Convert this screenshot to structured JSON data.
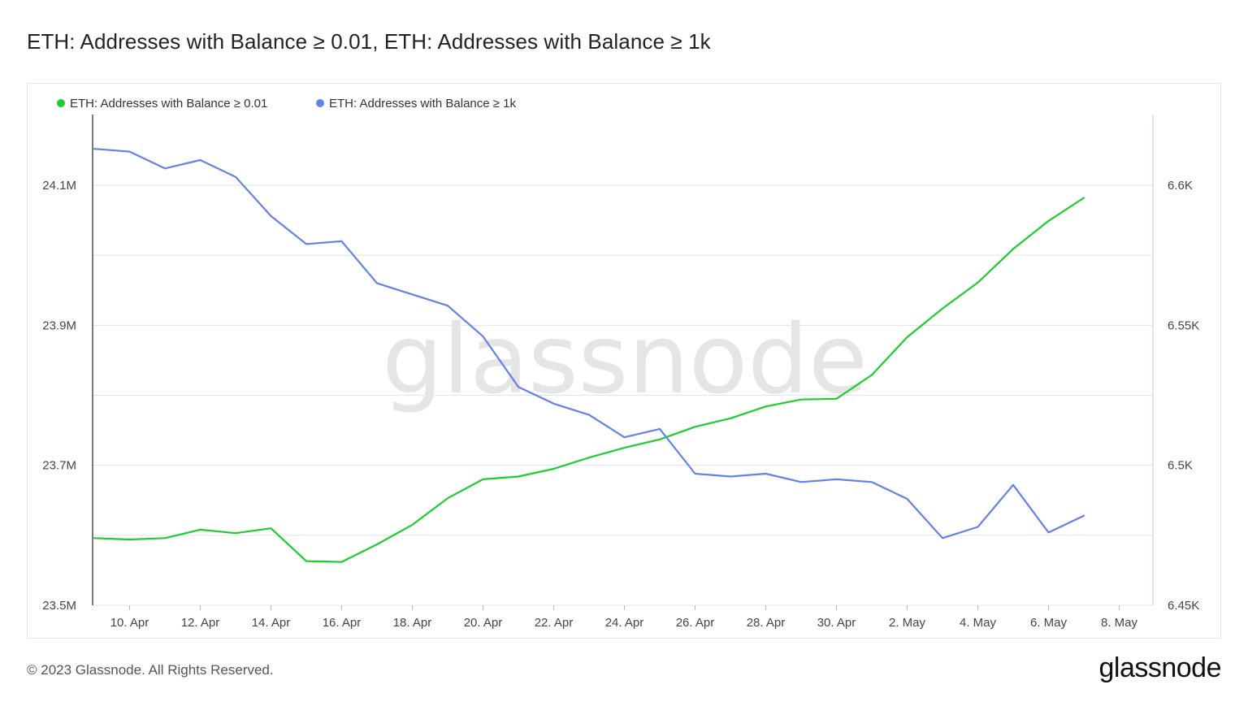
{
  "title": "ETH: Addresses with Balance ≥ 0.01, ETH: Addresses with Balance ≥ 1k",
  "watermark": "glassnode",
  "footer": {
    "copyright": "© 2023 Glassnode. All Rights Reserved.",
    "logo": "glassnode"
  },
  "chart_data": {
    "type": "line",
    "x_tick_labels": [
      "10. Apr",
      "12. Apr",
      "14. Apr",
      "16. Apr",
      "18. Apr",
      "20. Apr",
      "22. Apr",
      "24. Apr",
      "26. Apr",
      "28. Apr",
      "30. Apr",
      "2. May",
      "4. May",
      "6. May",
      "8. May"
    ],
    "x": [
      "2023-04-09",
      "2023-04-10",
      "2023-04-11",
      "2023-04-12",
      "2023-04-13",
      "2023-04-14",
      "2023-04-15",
      "2023-04-16",
      "2023-04-17",
      "2023-04-18",
      "2023-04-19",
      "2023-04-20",
      "2023-04-21",
      "2023-04-22",
      "2023-04-23",
      "2023-04-24",
      "2023-04-25",
      "2023-04-26",
      "2023-04-27",
      "2023-04-28",
      "2023-04-29",
      "2023-04-30",
      "2023-05-01",
      "2023-05-02",
      "2023-05-03",
      "2023-05-04",
      "2023-05-05",
      "2023-05-06",
      "2023-05-07"
    ],
    "y_left": {
      "ticks": [
        "23.5M",
        "23.7M",
        "23.9M",
        "24.1M"
      ],
      "range": [
        23500000,
        24100000
      ]
    },
    "y_right": {
      "ticks": [
        "6.45K",
        "6.5K",
        "6.55K",
        "6.6K"
      ],
      "range": [
        6450,
        6600
      ]
    },
    "grid": true,
    "legend_position": "top-left",
    "series": [
      {
        "name": "ETH: Addresses with Balance ≥ 0.01",
        "color": "#1fcc2f",
        "axis": "left",
        "values": [
          23596000,
          23594000,
          23596000,
          23608000,
          23603000,
          23610000,
          23563000,
          23562000,
          23587000,
          23615000,
          23653000,
          23680000,
          23684000,
          23695000,
          23711000,
          23725000,
          23737000,
          23755000,
          23767000,
          23784000,
          23794000,
          23795000,
          23829000,
          23883000,
          23924000,
          23961000,
          24009000,
          24049000,
          24082000
        ]
      },
      {
        "name": "ETH: Addresses with Balance ≥ 1k",
        "color": "#6481e8",
        "axis": "right",
        "values": [
          6613,
          6612,
          6606,
          6609,
          6603,
          6589,
          6579,
          6580,
          6565,
          6561,
          6557,
          6546,
          6528,
          6522,
          6518,
          6510,
          6513,
          6497,
          6496,
          6497,
          6494,
          6495,
          6494,
          6488,
          6474,
          6478,
          6493,
          6476,
          6482
        ]
      }
    ]
  }
}
